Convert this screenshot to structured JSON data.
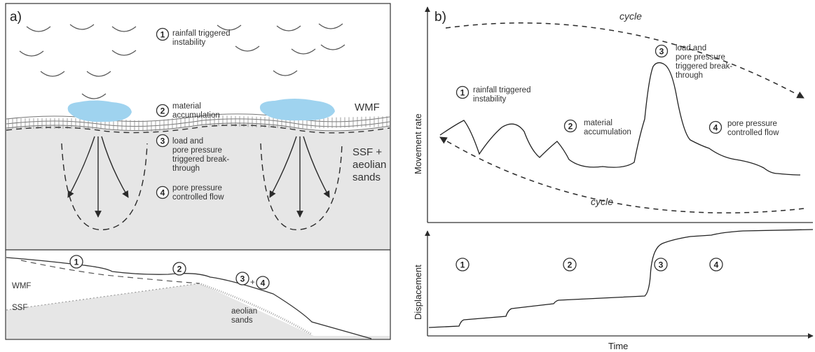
{
  "panel_a": {
    "label": "a)",
    "steps": {
      "s1": {
        "num": "1",
        "lines": [
          "rainfall triggered",
          "instability"
        ]
      },
      "s2": {
        "num": "2",
        "lines": [
          "material",
          "accumulation"
        ]
      },
      "s3": {
        "num": "3",
        "lines": [
          "load and",
          "pore pressure",
          "triggered break-",
          "through"
        ]
      },
      "s4": {
        "num": "4",
        "lines": [
          "pore pressure",
          "controlled flow"
        ]
      }
    },
    "layers": {
      "wmf": "WMF",
      "ssf_line1": "SSF +",
      "ssf_line2": "aeolian",
      "ssf_line3": "sands"
    },
    "cross_section": {
      "wmf": "WMF",
      "ssf": "SSF",
      "aeolian_line1": "aeolian",
      "aeolian_line2": "sands",
      "n1": "1",
      "n2": "2",
      "n3": "3",
      "plus": "+",
      "n4": "4"
    }
  },
  "panel_b": {
    "label": "b)",
    "cycle_top": "cycle",
    "cycle_bottom": "cycle",
    "ylabel_top": "Movement rate",
    "ylabel_bottom": "Displacement",
    "xlabel": "Time",
    "steps": {
      "s1": {
        "num": "1",
        "lines": [
          "rainfall triggered",
          "instability"
        ]
      },
      "s2": {
        "num": "2",
        "lines": [
          "material",
          "accumulation"
        ]
      },
      "s3": {
        "num": "3",
        "lines": [
          "load and",
          "pore pressure",
          "triggered break-",
          "through"
        ]
      },
      "s4": {
        "num": "4",
        "lines": [
          "pore pressure",
          "controlled flow"
        ]
      }
    },
    "disp_steps": {
      "n1": "1",
      "n2": "2",
      "n3": "3",
      "n4": "4"
    }
  },
  "colors": {
    "water": "#9fd3ef",
    "ground": "#e6e6e6",
    "line": "#2a2a2a"
  }
}
